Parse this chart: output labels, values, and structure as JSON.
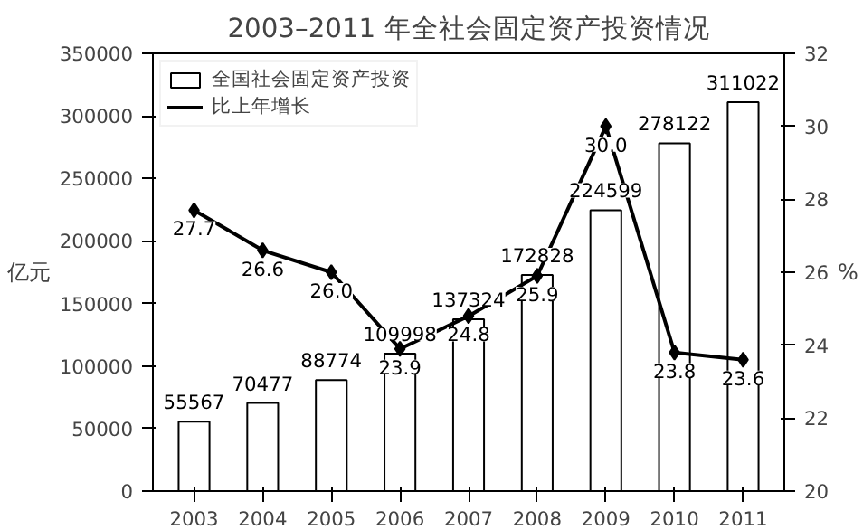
{
  "chart_data": {
    "type": "bar",
    "title": "2003–2011 年全社会固定资产投资情况",
    "ylabel": "亿元",
    "y2label": "%",
    "categories": [
      "2003",
      "2004",
      "2005",
      "2006",
      "2007",
      "2008",
      "2009",
      "2010",
      "2011"
    ],
    "series": [
      {
        "name": "全国社会固定资产投资",
        "color": "#ffffff",
        "values": [
          55567,
          70477,
          88774,
          109998,
          137324,
          172828,
          224599,
          278122,
          311022
        ]
      },
      {
        "name": "比上年增长",
        "type": "line",
        "axis": "y2",
        "color": "#000000",
        "marker": "diamond",
        "values": [
          27.7,
          26.6,
          26.0,
          23.9,
          24.8,
          25.9,
          30.0,
          23.8,
          23.6
        ],
        "value_labels": [
          "27.7",
          "26.6",
          "26.0",
          "23.9",
          "24.8",
          "25.9",
          "30.0",
          "23.8",
          "23.6"
        ]
      }
    ],
    "ylim": [
      0,
      350000
    ],
    "yticks": [
      0,
      50000,
      100000,
      150000,
      200000,
      250000,
      300000,
      350000
    ],
    "y2lim": [
      20,
      32
    ],
    "y2ticks": [
      20,
      22,
      24,
      26,
      28,
      30,
      32
    ],
    "data_labels": true,
    "legend": "top left",
    "grid": false
  }
}
